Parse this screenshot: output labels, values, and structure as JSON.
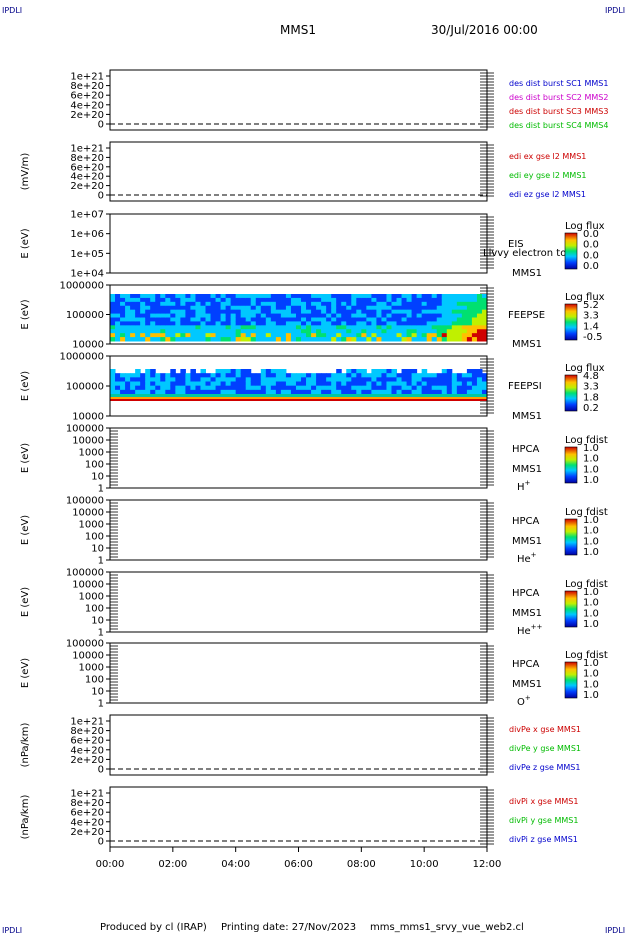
{
  "header": {
    "corner_label": "IPDLI",
    "title": "MMS1",
    "datetime": "30/Jul/2016 00:00"
  },
  "footer": {
    "produced": "Produced by cl (IRAP)",
    "printing": "Printing date: 27/Nov/2023",
    "file": "mms_mms1_srvy_vue_web2.cl"
  },
  "chart_data": {
    "type": "multi-panel",
    "x_ticks": [
      "00:00",
      "02:00",
      "04:00",
      "06:00",
      "08:00",
      "10:00",
      "12:00"
    ],
    "panels": [
      {
        "id": "des",
        "kind": "line",
        "ylabel": "",
        "ticks": [
          "1e+21",
          "8e+20",
          "6e+20",
          "4e+20",
          "2e+20",
          "0"
        ],
        "legend": [
          {
            "text": "des dist burst SC1 MMS1",
            "color": "#0000cc"
          },
          {
            "text": "des dist burst SC2 MMS2",
            "color": "#cc00cc"
          },
          {
            "text": "des dist burst SC3 MMS3",
            "color": "#cc0000"
          },
          {
            "text": "des dist burst SC4 MMS4",
            "color": "#00bb00"
          }
        ]
      },
      {
        "id": "edi",
        "kind": "line",
        "ylabel": "(mV/m)",
        "ticks": [
          "1e+21",
          "8e+20",
          "6e+20",
          "4e+20",
          "2e+20",
          "0"
        ],
        "legend": [
          {
            "text": "edi ex gse l2 MMS1",
            "color": "#cc0000"
          },
          {
            "text": "edi ey gse l2 MMS1",
            "color": "#00bb00"
          },
          {
            "text": "edi ez gse l2 MMS1",
            "color": "#0000cc"
          }
        ]
      },
      {
        "id": "eis",
        "kind": "spectrogram",
        "ylabel": "E (eV)",
        "ticks": [
          "1e+07",
          "1e+06",
          "1e+05",
          "1e+04"
        ],
        "label": "EIS",
        "sc": "MMS1",
        "overlay": "Livvy electron to",
        "cb_title": "Log flux",
        "cb_values": [
          "0.0",
          "0.0",
          "0.0",
          "0.0"
        ]
      },
      {
        "id": "feepse",
        "kind": "spectrogram",
        "ylabel": "E (eV)",
        "ticks": [
          "1000000",
          "100000",
          "10000"
        ],
        "label": "FEEPSE",
        "sc": "MMS1",
        "cb_title": "Log flux",
        "cb_values": [
          "5.2",
          "3.3",
          "1.4",
          "-0.5"
        ]
      },
      {
        "id": "feepsi",
        "kind": "spectrogram",
        "ylabel": "E (eV)",
        "ticks": [
          "1000000",
          "100000",
          "10000"
        ],
        "label": "FEEPSI",
        "sc": "MMS1",
        "cb_title": "Log flux",
        "cb_values": [
          "4.8",
          "3.3",
          "1.8",
          "0.2"
        ]
      },
      {
        "id": "hpca_h",
        "kind": "spectrogram",
        "ylabel": "E (eV)",
        "ticks": [
          "100000",
          "10000",
          "1000",
          "100",
          "10",
          "1"
        ],
        "label": "HPCA",
        "sc": "MMS1",
        "species": "H",
        "charge": "+",
        "cb_title": "Log fdist",
        "cb_values": [
          "1.0",
          "1.0",
          "1.0",
          "1.0"
        ]
      },
      {
        "id": "hpca_he",
        "kind": "spectrogram",
        "ylabel": "E (eV)",
        "ticks": [
          "100000",
          "10000",
          "1000",
          "100",
          "10",
          "1"
        ],
        "label": "HPCA",
        "sc": "MMS1",
        "species": "He",
        "charge": "+",
        "cb_title": "Log fdist",
        "cb_values": [
          "1.0",
          "1.0",
          "1.0",
          "1.0"
        ]
      },
      {
        "id": "hpca_he2",
        "kind": "spectrogram",
        "ylabel": "E (eV)",
        "ticks": [
          "100000",
          "10000",
          "1000",
          "100",
          "10",
          "1"
        ],
        "label": "HPCA",
        "sc": "MMS1",
        "species": "He",
        "charge": "++",
        "cb_title": "Log fdist",
        "cb_values": [
          "1.0",
          "1.0",
          "1.0",
          "1.0"
        ]
      },
      {
        "id": "hpca_o",
        "kind": "spectrogram",
        "ylabel": "E (eV)",
        "ticks": [
          "100000",
          "10000",
          "1000",
          "100",
          "10",
          "1"
        ],
        "label": "HPCA",
        "sc": "MMS1",
        "species": "O",
        "charge": "+",
        "cb_title": "Log fdist",
        "cb_values": [
          "1.0",
          "1.0",
          "1.0",
          "1.0"
        ]
      },
      {
        "id": "divpe",
        "kind": "line",
        "ylabel": "(nPa/km)",
        "ticks": [
          "1e+21",
          "8e+20",
          "6e+20",
          "4e+20",
          "2e+20",
          "0"
        ],
        "legend": [
          {
            "text": "divPe x gse MMS1",
            "color": "#cc0000"
          },
          {
            "text": "divPe y gse MMS1",
            "color": "#00bb00"
          },
          {
            "text": "divPe z gse MMS1",
            "color": "#0000cc"
          }
        ]
      },
      {
        "id": "divpi",
        "kind": "line",
        "ylabel": "(nPa/km)",
        "ticks": [
          "1e+21",
          "8e+20",
          "6e+20",
          "4e+20",
          "2e+20",
          "0"
        ],
        "legend": [
          {
            "text": "divPi x gse MMS1",
            "color": "#cc0000"
          },
          {
            "text": "divPi y gse MMS1",
            "color": "#00bb00"
          },
          {
            "text": "divPi z gse MMS1",
            "color": "#0000cc"
          }
        ]
      }
    ]
  }
}
